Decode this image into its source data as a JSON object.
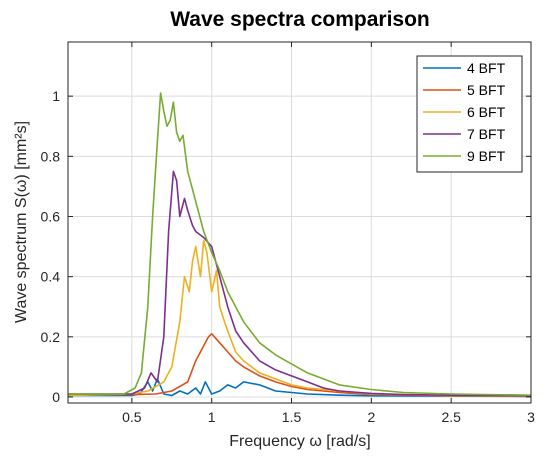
{
  "chart_data": {
    "type": "line",
    "title": "Wave spectra comparison",
    "xlabel": "Frequency ω [rad/s]",
    "ylabel": "Wave spectrum S(ω) [mm²s]",
    "xlim": [
      0.1,
      3
    ],
    "ylim": [
      -0.02,
      1.18
    ],
    "xticks": [
      0.5,
      1,
      1.5,
      2,
      2.5,
      3
    ],
    "xtick_labels": [
      "0.5",
      "1",
      "1.5",
      "2",
      "2.5",
      "3"
    ],
    "yticks": [
      0,
      0.2,
      0.4,
      0.6,
      0.8,
      1
    ],
    "ytick_labels": [
      "0",
      "0.2",
      "0.4",
      "0.6",
      "0.8",
      "1"
    ],
    "grid": true,
    "legend_position": "top-right",
    "series": [
      {
        "name": "4 BFT",
        "color": "#0072BD",
        "x": [
          0.1,
          0.5,
          0.55,
          0.6,
          0.63,
          0.66,
          0.7,
          0.75,
          0.8,
          0.85,
          0.9,
          0.93,
          0.96,
          1.0,
          1.05,
          1.1,
          1.15,
          1.2,
          1.3,
          1.4,
          1.5,
          1.6,
          1.8,
          2.0,
          2.5,
          3.0
        ],
        "y": [
          0.005,
          0.005,
          0.01,
          0.05,
          0.02,
          0.06,
          0.01,
          0.005,
          0.02,
          0.01,
          0.03,
          0.01,
          0.05,
          0.01,
          0.02,
          0.04,
          0.03,
          0.05,
          0.04,
          0.02,
          0.015,
          0.01,
          0.006,
          0.004,
          0.003,
          0.002
        ]
      },
      {
        "name": "5 BFT",
        "color": "#D95319",
        "x": [
          0.1,
          0.5,
          0.65,
          0.75,
          0.85,
          0.9,
          0.95,
          0.98,
          1.0,
          1.05,
          1.1,
          1.15,
          1.2,
          1.3,
          1.4,
          1.5,
          1.6,
          1.8,
          2.0,
          2.5,
          3.0
        ],
        "y": [
          0.008,
          0.008,
          0.01,
          0.02,
          0.05,
          0.12,
          0.17,
          0.2,
          0.21,
          0.18,
          0.15,
          0.12,
          0.1,
          0.07,
          0.05,
          0.035,
          0.025,
          0.015,
          0.008,
          0.004,
          0.003
        ]
      },
      {
        "name": "6 BFT",
        "color": "#EDB120",
        "x": [
          0.1,
          0.5,
          0.6,
          0.7,
          0.75,
          0.8,
          0.83,
          0.86,
          0.88,
          0.9,
          0.93,
          0.95,
          0.97,
          1.0,
          1.03,
          1.05,
          1.08,
          1.1,
          1.15,
          1.2,
          1.3,
          1.4,
          1.5,
          1.6,
          1.8,
          2.0,
          2.5,
          3.0
        ],
        "y": [
          0.005,
          0.01,
          0.02,
          0.05,
          0.1,
          0.25,
          0.4,
          0.35,
          0.45,
          0.5,
          0.4,
          0.52,
          0.48,
          0.35,
          0.42,
          0.3,
          0.25,
          0.22,
          0.15,
          0.12,
          0.08,
          0.06,
          0.04,
          0.03,
          0.02,
          0.01,
          0.005,
          0.003
        ]
      },
      {
        "name": "7 BFT",
        "color": "#7E2F8E",
        "x": [
          0.1,
          0.5,
          0.58,
          0.62,
          0.66,
          0.7,
          0.73,
          0.76,
          0.78,
          0.8,
          0.83,
          0.85,
          0.88,
          0.9,
          0.95,
          1.0,
          1.05,
          1.1,
          1.15,
          1.2,
          1.3,
          1.4,
          1.5,
          1.6,
          1.7,
          1.8,
          2.0,
          2.2,
          2.5,
          3.0
        ],
        "y": [
          0.01,
          0.01,
          0.03,
          0.08,
          0.05,
          0.2,
          0.55,
          0.75,
          0.72,
          0.6,
          0.66,
          0.62,
          0.57,
          0.55,
          0.53,
          0.5,
          0.4,
          0.3,
          0.22,
          0.18,
          0.12,
          0.09,
          0.07,
          0.05,
          0.03,
          0.02,
          0.012,
          0.008,
          0.006,
          0.004
        ]
      },
      {
        "name": "9 BFT",
        "color": "#77AC30",
        "x": [
          0.1,
          0.45,
          0.52,
          0.56,
          0.6,
          0.63,
          0.66,
          0.68,
          0.7,
          0.72,
          0.74,
          0.76,
          0.78,
          0.8,
          0.82,
          0.85,
          0.9,
          0.95,
          1.0,
          1.05,
          1.1,
          1.2,
          1.3,
          1.4,
          1.5,
          1.6,
          1.7,
          1.8,
          2.0,
          2.2,
          2.5,
          3.0
        ],
        "y": [
          0.01,
          0.01,
          0.03,
          0.08,
          0.3,
          0.6,
          0.85,
          1.01,
          0.95,
          0.9,
          0.92,
          0.98,
          0.88,
          0.85,
          0.87,
          0.75,
          0.65,
          0.55,
          0.48,
          0.42,
          0.35,
          0.25,
          0.18,
          0.14,
          0.11,
          0.08,
          0.06,
          0.04,
          0.025,
          0.015,
          0.01,
          0.006
        ]
      }
    ]
  }
}
